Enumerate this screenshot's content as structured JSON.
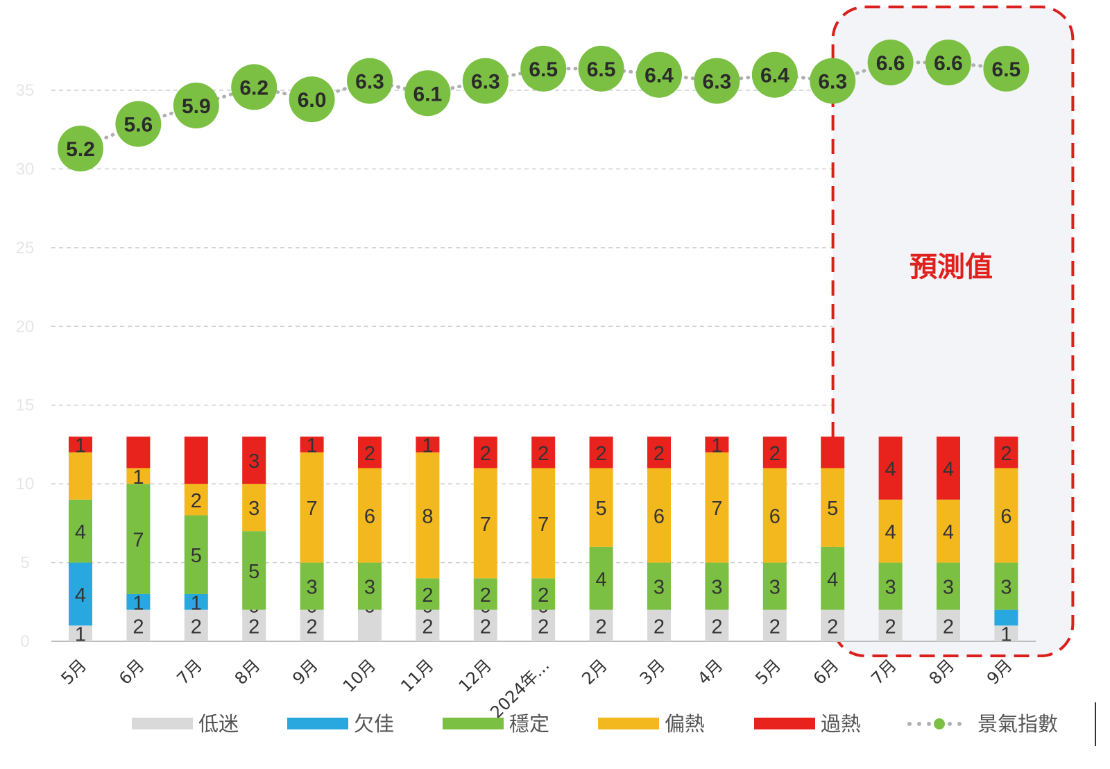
{
  "chart_data": {
    "type": "bar",
    "stacked": true,
    "categories": [
      "5月",
      "6月",
      "7月",
      "8月",
      "9月",
      "10月",
      "11月",
      "12月",
      "2024年...",
      "2月",
      "3月",
      "4月",
      "5月",
      "6月",
      "7月",
      "8月",
      "9月"
    ],
    "series": [
      {
        "name": "低迷",
        "color": "#d9d9d9",
        "values": [
          1,
          2,
          2,
          2,
          2,
          2,
          2,
          2,
          2,
          2,
          2,
          2,
          2,
          2,
          2,
          2,
          1
        ],
        "labels": [
          "1",
          "2",
          "2",
          "2",
          "2",
          "",
          "2",
          "2",
          "2",
          "2",
          "2",
          "2",
          "2",
          "2",
          "2",
          "2",
          "1"
        ]
      },
      {
        "name": "欠佳",
        "color": "#29a8e0",
        "values": [
          4,
          1,
          1,
          0,
          0,
          0,
          0,
          0,
          0,
          0,
          0,
          0,
          0,
          0,
          0,
          0,
          1
        ],
        "labels": [
          "4",
          "1",
          "1",
          "0",
          "0",
          "0",
          "0",
          "0",
          "0",
          "",
          "",
          "",
          "",
          "",
          "",
          "",
          ""
        ]
      },
      {
        "name": "穩定",
        "color": "#7bc043",
        "values": [
          4,
          7,
          5,
          5,
          3,
          3,
          2,
          2,
          2,
          4,
          3,
          3,
          3,
          4,
          3,
          3,
          3
        ],
        "labels": [
          "4",
          "7",
          "5",
          "5",
          "3",
          "3",
          "2",
          "2",
          "2",
          "4",
          "3",
          "3",
          "3",
          "4",
          "3",
          "3",
          "3"
        ]
      },
      {
        "name": "偏熱",
        "color": "#f4b81f",
        "values": [
          3,
          1,
          2,
          3,
          7,
          6,
          8,
          7,
          7,
          5,
          6,
          7,
          6,
          5,
          4,
          4,
          6
        ],
        "labels": [
          "",
          "1",
          "2",
          "3",
          "7",
          "6",
          "8",
          "7",
          "7",
          "5",
          "6",
          "7",
          "6",
          "5",
          "4",
          "4",
          "6"
        ]
      },
      {
        "name": "過熱",
        "color": "#e8231e",
        "values": [
          1,
          2,
          3,
          3,
          1,
          2,
          1,
          2,
          2,
          2,
          2,
          1,
          2,
          2,
          4,
          4,
          2
        ],
        "labels": [
          "1",
          "",
          "",
          "3",
          "1",
          "2",
          "1",
          "2",
          "2",
          "2",
          "2",
          "1",
          "2",
          "",
          "4",
          "4",
          "2"
        ]
      }
    ],
    "line": {
      "name": "景氣指數",
      "color": "#7bc043",
      "values": [
        5.2,
        5.6,
        5.9,
        6.2,
        6.0,
        6.3,
        6.1,
        6.3,
        6.5,
        6.5,
        6.4,
        6.3,
        6.4,
        6.3,
        6.6,
        6.6,
        6.5
      ],
      "labels": [
        "5.2",
        "5.6",
        "5.9",
        "6.2",
        "6.0",
        "6.3",
        "6.1",
        "6.3",
        "6.5",
        "6.5",
        "6.4",
        "6.3",
        "6.4",
        "6.3",
        "6.6",
        "6.6",
        "6.5"
      ]
    },
    "y_axis": {
      "ticks": [
        "0",
        "5",
        "10",
        "15",
        "20",
        "25",
        "30",
        "35"
      ],
      "tick_values": [
        0,
        5,
        10,
        15,
        20,
        25,
        30,
        35
      ],
      "ylim": [
        0,
        35
      ]
    },
    "forecast": {
      "label": "預測值",
      "start_category": 14,
      "end_category": 16
    },
    "legend_position": "bottom",
    "grid": true
  }
}
